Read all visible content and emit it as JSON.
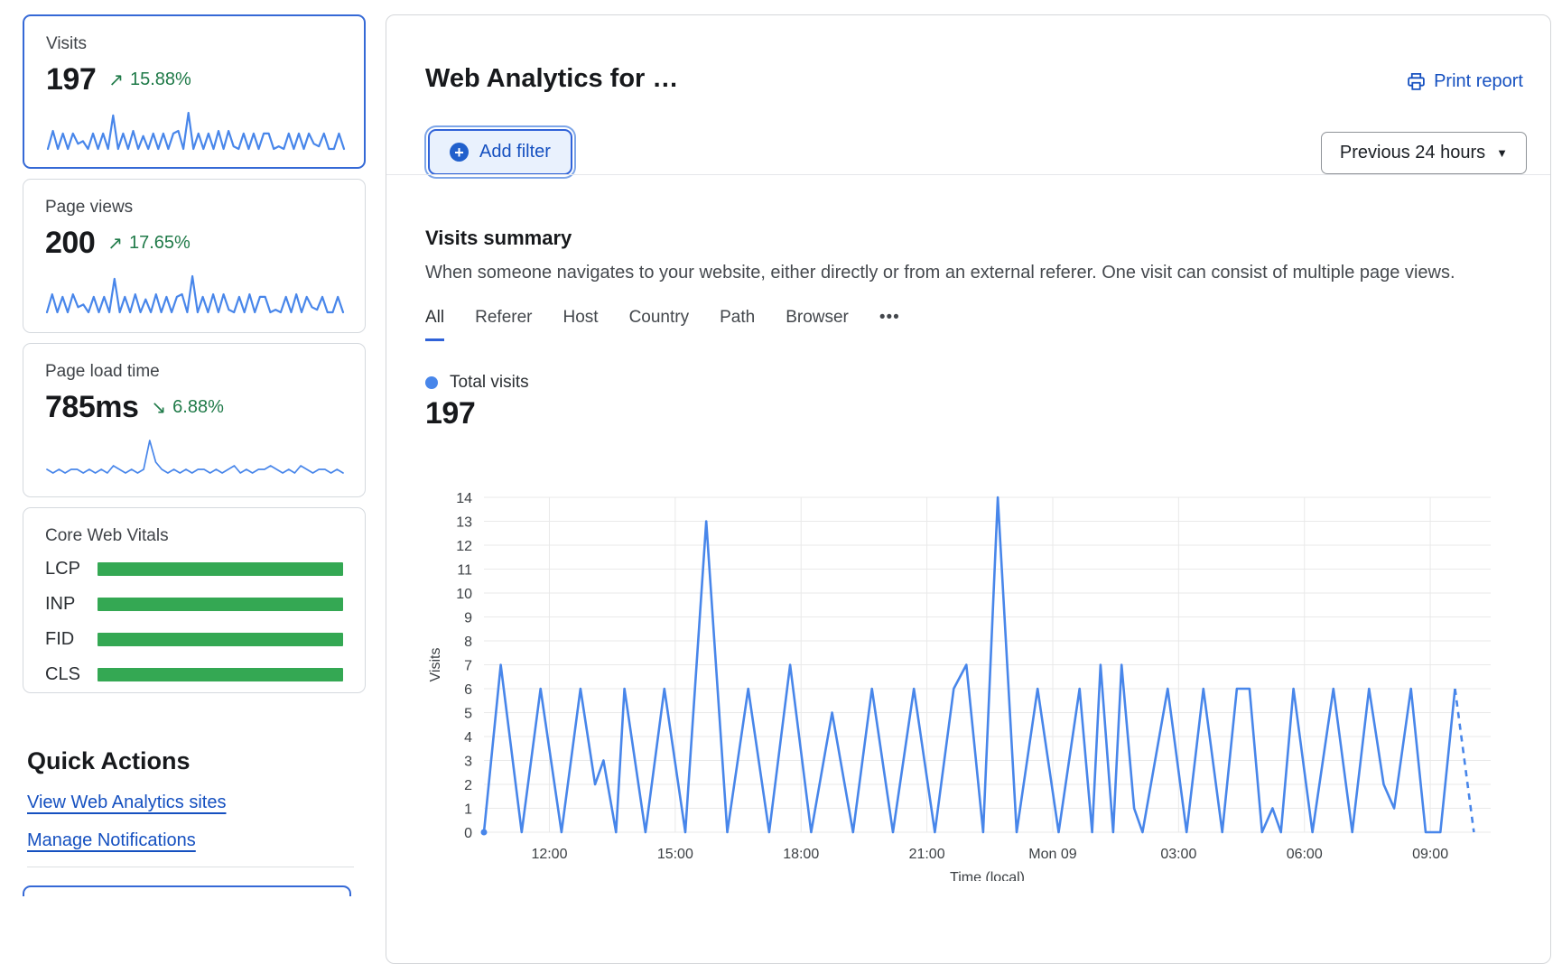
{
  "colors": {
    "accent_blue": "#2f62d8",
    "link_blue": "#1550c0",
    "chart_line": "#4886ea",
    "positive_green": "#1f7a48",
    "bar_green": "#34a853"
  },
  "sidebar": {
    "cards": [
      {
        "label": "Visits",
        "value": "197",
        "arrow": "↗",
        "delta": "15.88%",
        "direction": "up",
        "selected": true,
        "sparkline": [
          0,
          7,
          0,
          6,
          0,
          6,
          2,
          3,
          0,
          6,
          0,
          6,
          0,
          13,
          0,
          6,
          0,
          7,
          0,
          5,
          0,
          6,
          0,
          6,
          0,
          6,
          7,
          0,
          14,
          0,
          6,
          0,
          6,
          0,
          7,
          0,
          7,
          1,
          0,
          6,
          0,
          6,
          0,
          6,
          6,
          0,
          1,
          0,
          6,
          0,
          6,
          0,
          6,
          2,
          1,
          6,
          0,
          0,
          6,
          0
        ]
      },
      {
        "label": "Page views",
        "value": "200",
        "arrow": "↗",
        "delta": "17.65%",
        "direction": "up",
        "selected": false,
        "sparkline": [
          0,
          7,
          0,
          6,
          0,
          7,
          2,
          3,
          0,
          6,
          0,
          6,
          0,
          13,
          0,
          6,
          0,
          7,
          0,
          5,
          0,
          7,
          0,
          6,
          0,
          6,
          7,
          0,
          14,
          0,
          6,
          0,
          7,
          0,
          7,
          1,
          0,
          6,
          0,
          7,
          0,
          6,
          6,
          0,
          1,
          0,
          6,
          0,
          7,
          0,
          6,
          2,
          1,
          6,
          0,
          0,
          6,
          0
        ]
      },
      {
        "label": "Page load time",
        "value": "785ms",
        "arrow": "↘",
        "delta": "6.88%",
        "direction": "down",
        "selected": false,
        "sparkline": [
          2,
          1,
          2,
          1,
          2,
          2,
          1,
          2,
          1,
          2,
          1,
          3,
          2,
          1,
          2,
          1,
          2,
          10,
          4,
          2,
          1,
          2,
          1,
          2,
          1,
          2,
          2,
          1,
          2,
          1,
          2,
          3,
          1,
          2,
          1,
          2,
          2,
          3,
          2,
          1,
          2,
          1,
          3,
          2,
          1,
          2,
          2,
          1,
          2,
          1
        ]
      }
    ],
    "core_web_vitals": {
      "title": "Core Web Vitals",
      "rows": [
        {
          "label": "LCP"
        },
        {
          "label": "INP"
        },
        {
          "label": "FID"
        },
        {
          "label": "CLS"
        }
      ]
    },
    "quick_actions": {
      "title": "Quick Actions",
      "links": [
        {
          "label": "View Web Analytics sites"
        },
        {
          "label": "Manage Notifications"
        }
      ]
    }
  },
  "header": {
    "title": "Web Analytics for …",
    "print_label": "Print report",
    "add_filter_label": "Add filter",
    "plus_glyph": "+",
    "time_range_label": "Previous 24 hours",
    "caret": "▼"
  },
  "summary": {
    "title": "Visits summary",
    "description": "When someone navigates to your website, either directly or from an external referer. One visit can consist of multiple page views.",
    "tabs": [
      {
        "label": "All",
        "active": true
      },
      {
        "label": "Referer"
      },
      {
        "label": "Host"
      },
      {
        "label": "Country"
      },
      {
        "label": "Path"
      },
      {
        "label": "Browser"
      },
      {
        "label": "•••"
      }
    ],
    "legend_label": "Total visits",
    "total": "197"
  },
  "chart_data": {
    "type": "line",
    "title": "Visits summary",
    "xlabel": "Time (local)",
    "ylabel": "Visits",
    "ylim": [
      0,
      14
    ],
    "x_span_hours": 24,
    "grid": true,
    "legend_position": "top-left",
    "y_ticks": [
      0,
      1,
      2,
      3,
      4,
      5,
      6,
      7,
      8,
      9,
      10,
      11,
      12,
      13,
      14
    ],
    "x_ticks": [
      {
        "t": 1.56,
        "label": "12:00"
      },
      {
        "t": 4.56,
        "label": "15:00"
      },
      {
        "t": 7.56,
        "label": "18:00"
      },
      {
        "t": 10.56,
        "label": "21:00"
      },
      {
        "t": 13.56,
        "label": "Mon 09"
      },
      {
        "t": 16.56,
        "label": "03:00"
      },
      {
        "t": 19.56,
        "label": "06:00"
      },
      {
        "t": 22.56,
        "label": "09:00"
      }
    ],
    "series": [
      {
        "name": "Total visits",
        "total": 197,
        "dashed_tail": true,
        "points": [
          [
            0,
            0
          ],
          [
            0.4,
            7
          ],
          [
            0.9,
            0
          ],
          [
            1.35,
            6
          ],
          [
            1.85,
            0
          ],
          [
            2.3,
            6
          ],
          [
            2.65,
            2
          ],
          [
            2.85,
            3
          ],
          [
            3.15,
            0
          ],
          [
            3.35,
            6
          ],
          [
            3.85,
            0
          ],
          [
            4.3,
            6
          ],
          [
            4.8,
            0
          ],
          [
            5.3,
            13
          ],
          [
            5.8,
            0
          ],
          [
            6.3,
            6
          ],
          [
            6.8,
            0
          ],
          [
            7.3,
            7
          ],
          [
            7.8,
            0
          ],
          [
            8.3,
            5
          ],
          [
            8.8,
            0
          ],
          [
            9.25,
            6
          ],
          [
            9.75,
            0
          ],
          [
            10.25,
            6
          ],
          [
            10.75,
            0
          ],
          [
            11.2,
            6
          ],
          [
            11.5,
            7
          ],
          [
            11.9,
            0
          ],
          [
            12.25,
            14
          ],
          [
            12.7,
            0
          ],
          [
            13.2,
            6
          ],
          [
            13.7,
            0
          ],
          [
            14.2,
            6
          ],
          [
            14.5,
            0
          ],
          [
            14.7,
            7
          ],
          [
            15.0,
            0
          ],
          [
            15.2,
            7
          ],
          [
            15.5,
            1
          ],
          [
            15.7,
            0
          ],
          [
            16.3,
            6
          ],
          [
            16.75,
            0
          ],
          [
            17.15,
            6
          ],
          [
            17.6,
            0
          ],
          [
            17.95,
            6
          ],
          [
            18.25,
            6
          ],
          [
            18.55,
            0
          ],
          [
            18.8,
            1
          ],
          [
            19.0,
            0
          ],
          [
            19.3,
            6
          ],
          [
            19.75,
            0
          ],
          [
            20.25,
            6
          ],
          [
            20.7,
            0
          ],
          [
            21.1,
            6
          ],
          [
            21.45,
            2
          ],
          [
            21.7,
            1
          ],
          [
            22.1,
            6
          ],
          [
            22.45,
            0
          ],
          [
            22.8,
            0
          ],
          [
            23.15,
            6
          ],
          [
            23.6,
            0
          ]
        ]
      }
    ]
  }
}
